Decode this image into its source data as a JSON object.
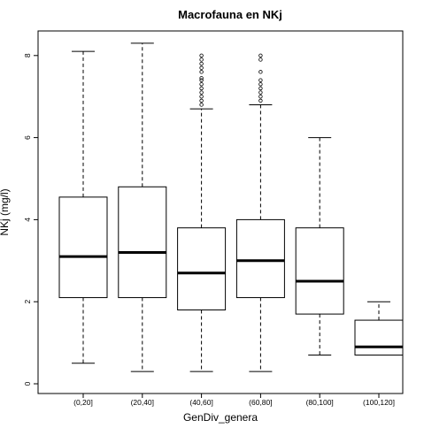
{
  "chart_data": {
    "type": "boxplot",
    "title": "Macrofauna en NKj",
    "xlabel": "GenDiv_genera",
    "ylabel": "NKj (mg/l)",
    "ylim": [
      0,
      8.3
    ],
    "yticks": [
      0,
      2,
      4,
      6,
      8
    ],
    "grid": false,
    "categories": [
      "(0,20]",
      "(20,40]",
      "(40,60]",
      "(60,80]",
      "(80,100]",
      "(100,120]"
    ],
    "boxes": [
      {
        "category": "(0,20]",
        "whisker_low": 0.5,
        "q1": 2.1,
        "median": 3.1,
        "q3": 4.55,
        "whisker_high": 8.1,
        "outliers": []
      },
      {
        "category": "(20,40]",
        "whisker_low": 0.3,
        "q1": 2.1,
        "median": 3.2,
        "q3": 4.8,
        "whisker_high": 8.3,
        "outliers": []
      },
      {
        "category": "(40,60]",
        "whisker_low": 0.3,
        "q1": 1.8,
        "median": 2.7,
        "q3": 3.8,
        "whisker_high": 6.7,
        "outliers": [
          6.8,
          6.9,
          7.0,
          7.1,
          7.2,
          7.3,
          7.4,
          7.45,
          7.6,
          7.7,
          7.8,
          7.9,
          8.0
        ]
      },
      {
        "category": "(60,80]",
        "whisker_low": 0.3,
        "q1": 2.1,
        "median": 3.0,
        "q3": 4.0,
        "whisker_high": 6.8,
        "outliers": [
          6.9,
          7.0,
          7.1,
          7.2,
          7.3,
          7.4,
          7.6,
          7.9,
          8.0
        ]
      },
      {
        "category": "(80,100]",
        "whisker_low": 0.7,
        "q1": 1.7,
        "median": 2.5,
        "q3": 3.8,
        "whisker_high": 6.0,
        "outliers": []
      },
      {
        "category": "(100,120]",
        "whisker_low": 0.7,
        "q1": 0.7,
        "median": 0.9,
        "q3": 1.55,
        "whisker_high": 2.0,
        "outliers": []
      }
    ]
  }
}
